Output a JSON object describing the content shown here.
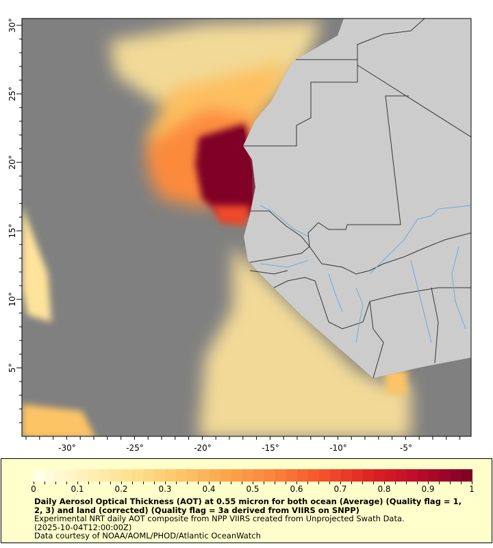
{
  "map": {
    "lat_ticks": [
      "30°",
      "25°",
      "20°",
      "15°",
      "10°",
      "5°"
    ],
    "lon_ticks": [
      "-30°",
      "-25°",
      "-20°",
      "-15°",
      "-10°",
      "-5°"
    ],
    "colors": {
      "ocean": "#808080",
      "land": "#cccccc",
      "border": "#333333",
      "river": "#6fa8dc"
    }
  },
  "colorbar": {
    "ticks": [
      "0",
      "0.1",
      "0.2",
      "0.3",
      "0.4",
      "0.5",
      "0.6",
      "0.7",
      "0.8",
      "0.9",
      "1"
    ],
    "stops": [
      "#ffffe6",
      "#fff0b8",
      "#fedf8e",
      "#fec466",
      "#fca44a",
      "#fb803a",
      "#f4502c",
      "#dd2222",
      "#bb0b2b",
      "#800026"
    ]
  },
  "caption": {
    "title": "Daily Aerosol Optical Thickness (AOT) at 0.55 micron for both ocean (Average) (Quality flag = 1, 2, 3) and land (corrected) (Quality flag = 3a derived from VIIRS on SNPP)",
    "line1": "Experimental NRT daily AOT composite from NPP VIIRS created from Unprojected Swath Data.",
    "line2": "(2025-10-04T12:00:00Z)",
    "line3": "Data courtesy of NOAA/AOML/PHOD/Atlantic OceanWatch"
  }
}
